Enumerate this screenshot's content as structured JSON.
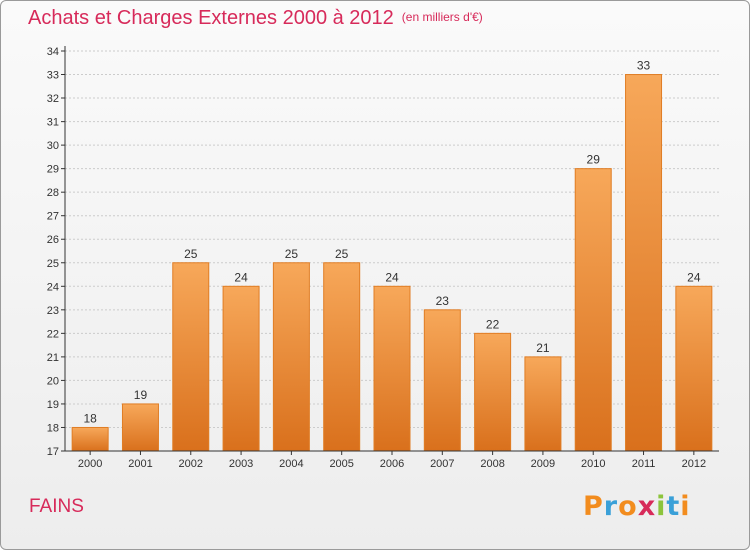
{
  "header": {
    "title": "Achats et Charges Externes 2000 à 2012",
    "unit_note": "(en milliers d'€)"
  },
  "footer": {
    "commune": "FAINS",
    "logo_text": "Proxiti"
  },
  "colors": {
    "title": "#d72a5a",
    "bar_top": "#f7a85a",
    "bar_bottom": "#d9701c",
    "bar_edge": "#e07d24",
    "axis": "#333333",
    "grid": "#cccccc"
  },
  "chart_data": {
    "type": "bar",
    "categories": [
      "2000",
      "2001",
      "2002",
      "2003",
      "2004",
      "2005",
      "2006",
      "2007",
      "2008",
      "2009",
      "2010",
      "2011",
      "2012"
    ],
    "values": [
      18,
      19,
      25,
      24,
      25,
      25,
      24,
      23,
      22,
      21,
      29,
      33,
      24
    ],
    "title": "Achats et Charges Externes 2000 à 2012",
    "subtitle": "(en milliers d'€)",
    "ylim": [
      17,
      34
    ],
    "yticks": [
      17,
      18,
      19,
      20,
      21,
      22,
      23,
      24,
      25,
      26,
      27,
      28,
      29,
      30,
      31,
      32,
      33,
      34
    ],
    "grid": true,
    "legend": "none"
  }
}
